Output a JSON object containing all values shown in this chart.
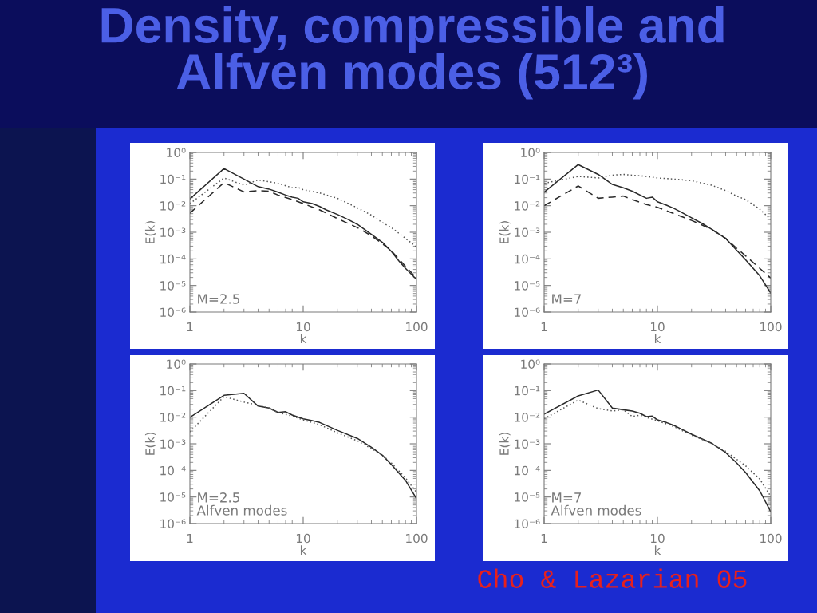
{
  "chart_data": [
    {
      "type": "line",
      "title": "Density, compressible and\nAlfven modes (512³)",
      "xlabel": "k",
      "ylabel": "E(k)",
      "annotations": [
        "M=2.5"
      ],
      "log": "xy",
      "xlim": [
        1,
        100
      ],
      "xticks": [
        1,
        10,
        100
      ],
      "ylim": [
        1e-06,
        1
      ],
      "yticks": [
        {
          "value": 1e-06,
          "label": "10⁻⁶"
        },
        {
          "value": 1e-05,
          "label": "10⁻⁵"
        },
        {
          "value": 0.0001,
          "label": "10⁻⁴"
        },
        {
          "value": 0.001,
          "label": "10⁻³"
        },
        {
          "value": 0.01,
          "label": "10⁻²"
        },
        {
          "value": 0.1,
          "label": "10⁻¹"
        },
        {
          "value": 1,
          "label": "10⁰"
        }
      ],
      "series": [
        {
          "color": "#2a2a2a",
          "line_style": "solid",
          "x": [
            1,
            2,
            3,
            4,
            5,
            6,
            7,
            8,
            9,
            10,
            12,
            14,
            16,
            20,
            25,
            30,
            40,
            50,
            60,
            70,
            80,
            100
          ],
          "values": [
            0.018,
            0.25,
            0.1,
            0.052,
            0.042,
            0.032,
            0.025,
            0.021,
            0.019,
            0.014,
            0.012,
            0.0093,
            0.0069,
            0.0047,
            0.003,
            0.002,
            0.00083,
            0.00042,
            0.00019,
            8.3e-05,
            4.4e-05,
            1.7e-05
          ]
        },
        {
          "color": "#555555",
          "line_style": "dotted",
          "x": [
            1,
            2,
            3,
            4,
            5,
            6,
            8,
            9,
            10,
            14,
            20,
            30,
            40,
            50,
            60,
            80,
            100
          ],
          "values": [
            0.012,
            0.11,
            0.059,
            0.093,
            0.079,
            0.069,
            0.047,
            0.049,
            0.04,
            0.03,
            0.019,
            0.0083,
            0.0044,
            0.0023,
            0.0015,
            0.00059,
            0.00028
          ]
        },
        {
          "color": "#2a2a2a",
          "line_style": "dashed",
          "x": [
            1,
            2,
            3,
            4,
            5,
            6,
            8,
            10,
            14,
            20,
            30,
            40,
            50,
            60,
            80,
            100
          ],
          "values": [
            0.0052,
            0.074,
            0.033,
            0.037,
            0.035,
            0.025,
            0.017,
            0.012,
            0.0069,
            0.0033,
            0.0015,
            0.00074,
            0.00037,
            0.0002,
            5.2e-05,
            1.9e-05
          ]
        }
      ]
    },
    {
      "type": "line",
      "xlabel": "k",
      "ylabel": "E(k)",
      "annotations": [
        "M=7"
      ],
      "log": "xy",
      "xlim": [
        1,
        100
      ],
      "xticks": [
        1,
        10,
        100
      ],
      "ylim": [
        1e-06,
        1
      ],
      "yticks": [
        {
          "value": 1e-06,
          "label": "10⁻⁶"
        },
        {
          "value": 1e-05,
          "label": "10⁻⁵"
        },
        {
          "value": 0.0001,
          "label": "10⁻⁴"
        },
        {
          "value": 0.001,
          "label": "10⁻³"
        },
        {
          "value": 0.01,
          "label": "10⁻²"
        },
        {
          "value": 0.1,
          "label": "10⁻¹"
        },
        {
          "value": 1,
          "label": "10⁰"
        }
      ],
      "series": [
        {
          "color": "#2a2a2a",
          "line_style": "solid",
          "x": [
            1,
            2,
            3,
            4,
            5,
            6,
            8,
            9,
            10,
            12,
            14,
            16,
            20,
            25,
            30,
            40,
            50,
            60,
            80,
            100
          ],
          "values": [
            0.032,
            0.35,
            0.15,
            0.063,
            0.047,
            0.035,
            0.019,
            0.021,
            0.014,
            0.0105,
            0.0079,
            0.0059,
            0.0035,
            0.0021,
            0.0013,
            0.00059,
            0.00021,
            9.3e-05,
            2.3e-05,
            5.2e-06
          ]
        },
        {
          "color": "#555555",
          "line_style": "dotted",
          "x": [
            1,
            2,
            3,
            4,
            5,
            6,
            8,
            10,
            14,
            20,
            30,
            40,
            50,
            60,
            80,
            100
          ],
          "values": [
            0.069,
            0.126,
            0.11,
            0.14,
            0.15,
            0.14,
            0.126,
            0.11,
            0.1,
            0.087,
            0.059,
            0.037,
            0.023,
            0.017,
            0.0074,
            0.003
          ]
        },
        {
          "color": "#2a2a2a",
          "line_style": "dashed",
          "x": [
            1,
            2,
            3,
            4,
            5,
            6,
            8,
            10,
            14,
            20,
            30,
            40,
            50,
            60,
            80,
            100
          ],
          "values": [
            0.01,
            0.055,
            0.019,
            0.021,
            0.023,
            0.017,
            0.011,
            0.0087,
            0.005,
            0.0028,
            0.0013,
            0.00059,
            0.00025,
            0.00013,
            4.4e-05,
            1.9e-05
          ]
        }
      ]
    },
    {
      "type": "line",
      "xlabel": "k",
      "ylabel": "E(k)",
      "annotations": [
        "M=2.5\nAlfven modes"
      ],
      "log": "xy",
      "xlim": [
        1,
        100
      ],
      "xticks": [
        1,
        10,
        100
      ],
      "ylim": [
        1e-06,
        1
      ],
      "yticks": [
        {
          "value": 1e-06,
          "label": "10⁻⁶"
        },
        {
          "value": 1e-05,
          "label": "10⁻⁵"
        },
        {
          "value": 0.0001,
          "label": "10⁻⁴"
        },
        {
          "value": 0.001,
          "label": "10⁻³"
        },
        {
          "value": 0.01,
          "label": "10⁻²"
        },
        {
          "value": 0.1,
          "label": "10⁻¹"
        },
        {
          "value": 1,
          "label": "10⁰"
        }
      ],
      "series": [
        {
          "color": "#2a2a2a",
          "line_style": "solid",
          "x": [
            1,
            2,
            3,
            4,
            5,
            6,
            7,
            8,
            10,
            12,
            14,
            20,
            30,
            40,
            50,
            60,
            80,
            100
          ],
          "values": [
            0.0098,
            0.066,
            0.079,
            0.026,
            0.022,
            0.015,
            0.016,
            0.012,
            0.0087,
            0.0074,
            0.0063,
            0.0032,
            0.0016,
            0.00074,
            0.00037,
            0.000166,
            4.2e-05,
            8.7e-06
          ]
        },
        {
          "color": "#555555",
          "line_style": "dotted",
          "x": [
            1,
            2,
            3,
            4,
            5,
            6,
            8,
            10,
            14,
            20,
            30,
            40,
            50,
            60,
            80,
            100
          ],
          "values": [
            0.0028,
            0.059,
            0.037,
            0.028,
            0.022,
            0.015,
            0.011,
            0.0079,
            0.0052,
            0.0026,
            0.0013,
            0.00066,
            0.00037,
            0.00019,
            5.2e-05,
            1.5e-05
          ]
        }
      ]
    },
    {
      "type": "line",
      "xlabel": "k",
      "ylabel": "E(k)",
      "annotations": [
        "M=7\nAlfven modes",
        "Cho & Lazarian 05"
      ],
      "log": "xy",
      "xlim": [
        1,
        100
      ],
      "xticks": [
        1,
        10,
        100
      ],
      "ylim": [
        1e-06,
        1
      ],
      "yticks": [
        {
          "value": 1e-06,
          "label": "10⁻⁶"
        },
        {
          "value": 1e-05,
          "label": "10⁻⁵"
        },
        {
          "value": 0.0001,
          "label": "10⁻⁴"
        },
        {
          "value": 0.001,
          "label": "10⁻³"
        },
        {
          "value": 0.01,
          "label": "10⁻²"
        },
        {
          "value": 0.1,
          "label": "10⁻¹"
        },
        {
          "value": 1,
          "label": "10⁰"
        }
      ],
      "series": [
        {
          "color": "#2a2a2a",
          "line_style": "solid",
          "x": [
            1,
            2,
            3,
            4,
            5,
            6,
            7,
            8,
            9,
            10,
            12,
            14,
            16,
            20,
            30,
            40,
            50,
            60,
            80,
            100
          ],
          "values": [
            0.013,
            0.063,
            0.105,
            0.022,
            0.019,
            0.017,
            0.014,
            0.0105,
            0.011,
            0.0079,
            0.0063,
            0.0049,
            0.0037,
            0.0023,
            0.00105,
            0.00047,
            0.00019,
            8.3e-05,
            1.7e-05,
            2.8e-06
          ]
        },
        {
          "color": "#555555",
          "line_style": "dotted",
          "x": [
            1,
            2,
            3,
            4,
            5,
            6,
            7,
            8,
            10,
            14,
            20,
            30,
            40,
            50,
            60,
            80,
            100
          ],
          "values": [
            0.0087,
            0.044,
            0.021,
            0.017,
            0.019,
            0.0105,
            0.012,
            0.0098,
            0.0074,
            0.0044,
            0.0021,
            0.00105,
            0.00052,
            0.00026,
            0.000148,
            4.7e-05,
            1.05e-05
          ]
        }
      ]
    }
  ]
}
